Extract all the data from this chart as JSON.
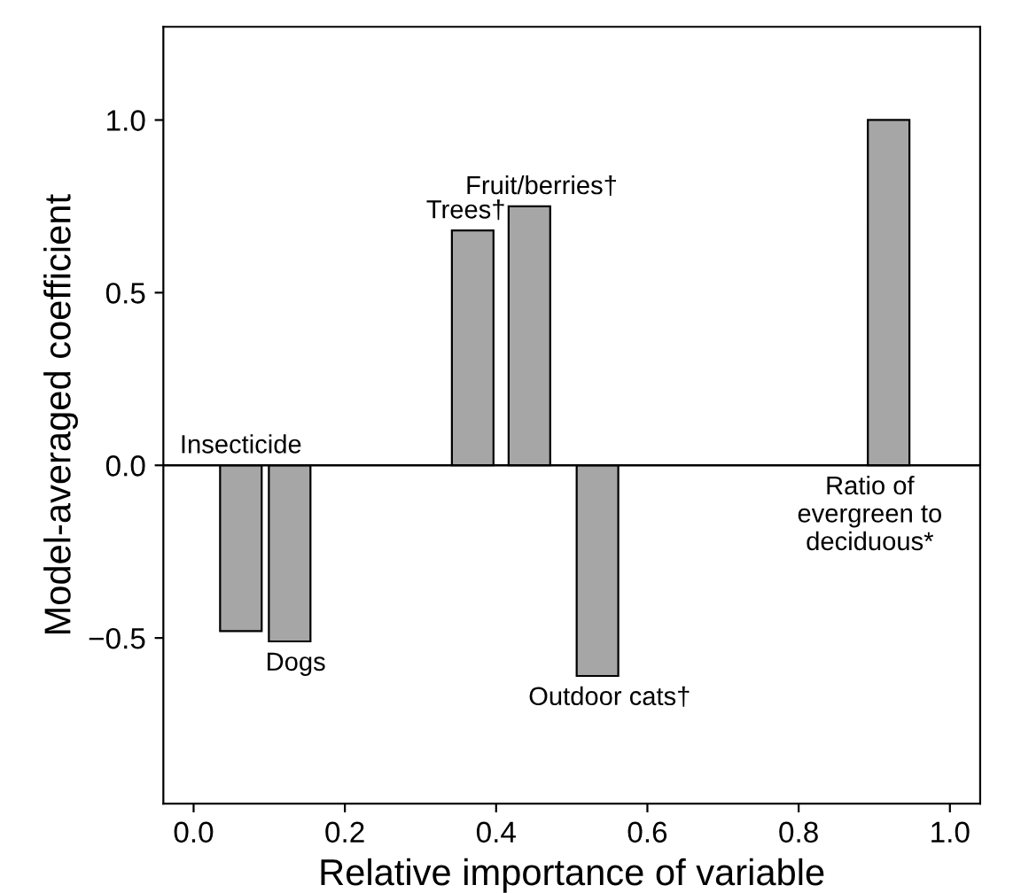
{
  "chart_data": {
    "type": "bar",
    "xlabel": "Relative importance of variable",
    "ylabel": "Model-averaged coefficient",
    "x": [
      0.0625,
      0.127,
      0.369,
      0.444,
      0.534,
      0.919
    ],
    "values": [
      -0.48,
      -0.51,
      0.68,
      0.75,
      -0.61,
      1.0
    ],
    "color": "#a6a6a6",
    "xlim": [
      -0.04,
      1.04
    ],
    "ylim": [
      -0.98,
      1.27
    ],
    "xticks": [
      {
        "value": 0,
        "label": "0.0"
      },
      {
        "value": 0.2,
        "label": "0.2"
      },
      {
        "value": 0.4,
        "label": "0.4"
      },
      {
        "value": 0.6,
        "label": "0.6"
      },
      {
        "value": 0.8,
        "label": "0.8"
      },
      {
        "value": 1,
        "label": "1.0"
      }
    ],
    "yticks": [
      {
        "value": -0.5,
        "label": "−0.5"
      },
      {
        "value": 0,
        "label": "0.0"
      },
      {
        "value": 0.5,
        "label": "0.5"
      },
      {
        "value": 1,
        "label": "1.0"
      }
    ],
    "ref_lines": [
      {
        "axis": "y",
        "value": 0,
        "color": "#000000"
      }
    ],
    "annotations": [
      {
        "text": "Insecticide",
        "x": 0.0625,
        "y": 0.0
      },
      {
        "text": "Dogs",
        "x": 0.135,
        "y": -0.51
      },
      {
        "text": "Trees†",
        "x": 0.36,
        "y": 0.68
      },
      {
        "text": "Fruit/berries†",
        "x": 0.46,
        "y": 0.75
      },
      {
        "text": "Outdoor cats†",
        "x": 0.55,
        "y": -0.61
      },
      {
        "text": "Ratio of\nevergreen to\ndeciduous*",
        "x": 0.919,
        "y": 0.0
      }
    ],
    "grid": false,
    "legend": false
  }
}
